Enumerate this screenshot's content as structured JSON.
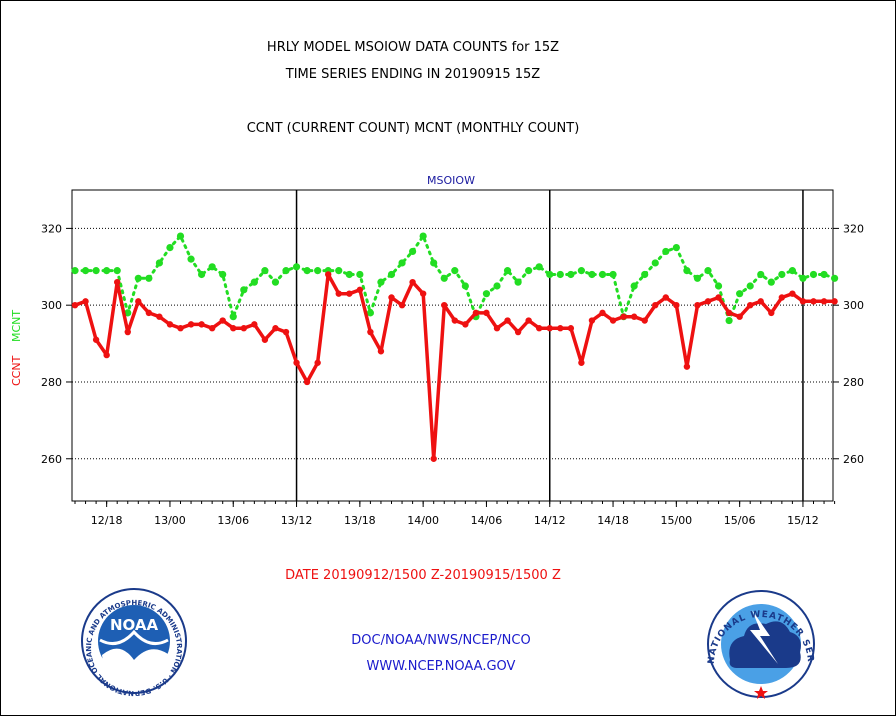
{
  "header": {
    "title_line1": "HRLY MODEL MSOIOW DATA COUNTS for 15Z",
    "title_line2": "TIME SERIES ENDING IN 20190915 15Z",
    "subtitle": "CCNT (CURRENT COUNT) MCNT (MONTHLY COUNT)"
  },
  "footer": {
    "date_range": "DATE 20190912/1500 Z-20190915/1500 Z",
    "org_path": "DOC/NOAA/NWS/NCEP/NCO",
    "website": "WWW.NCEP.NOAA.GOV",
    "noaa_logo_text": "NOAA",
    "noaa_ring_text": "NATIONAL OCEANIC AND ATMOSPHERIC ADMINISTRATION · U.S. DEPARTMENT OF COMMERCE ·",
    "nws_ring_text": "NATIONAL WEATHER SERVICE"
  },
  "colors": {
    "ccnt": "#ee1111",
    "mcnt": "#22dd22",
    "title": "#000000",
    "plot_title": "#1a1aa0",
    "footer_date": "#ee1111",
    "footer_links": "#1a1acc"
  },
  "chart_data": {
    "type": "line",
    "title": "MSOIOW",
    "ylabel_ccnt": "CCNT",
    "ylabel_mcnt": "MCNT",
    "ylim": [
      249,
      330
    ],
    "yticks": [
      260,
      280,
      300,
      320
    ],
    "x_range_hours": [
      0,
      72
    ],
    "x_tick_labels": [
      "12/18",
      "13/00",
      "13/06",
      "13/12",
      "13/18",
      "14/00",
      "14/06",
      "14/12",
      "14/18",
      "15/00",
      "15/06",
      "15/12"
    ],
    "day_boundaries": [
      "13/12",
      "14/12",
      "15/12"
    ],
    "grid_y": true,
    "series": [
      {
        "name": "CCNT",
        "style": "solid",
        "values": [
          300,
          301,
          291,
          287,
          306,
          293,
          301,
          298,
          297,
          295,
          294,
          295,
          295,
          294,
          296,
          294,
          294,
          295,
          291,
          294,
          293,
          285,
          280,
          285,
          308,
          303,
          303,
          304,
          293,
          288,
          302,
          300,
          306,
          303,
          260,
          300,
          296,
          295,
          298,
          298,
          294,
          296,
          293,
          296,
          294,
          294,
          294,
          294,
          285,
          296,
          298,
          296,
          297,
          297,
          296,
          300,
          302,
          300,
          284,
          300,
          301,
          302,
          298,
          297,
          300,
          301,
          298,
          302,
          303,
          301,
          301,
          301,
          301
        ]
      },
      {
        "name": "MCNT",
        "style": "dotted",
        "values": [
          309,
          309,
          309,
          309,
          309,
          298,
          307,
          307,
          311,
          315,
          318,
          312,
          308,
          310,
          308,
          297,
          304,
          306,
          309,
          306,
          309,
          310,
          309,
          309,
          309,
          309,
          308,
          308,
          298,
          306,
          308,
          311,
          314,
          318,
          311,
          307,
          309,
          305,
          297,
          303,
          305,
          309,
          306,
          309,
          310,
          308,
          308,
          308,
          309,
          308,
          308,
          308,
          297,
          305,
          308,
          311,
          314,
          315,
          309,
          307,
          309,
          305,
          296,
          303,
          305,
          308,
          306,
          308,
          309,
          307,
          308,
          308,
          307
        ]
      }
    ]
  }
}
